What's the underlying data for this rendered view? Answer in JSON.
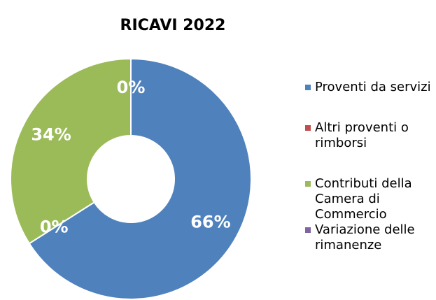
{
  "chart_data": {
    "type": "donut",
    "title": "RICAVI 2022",
    "categories": [
      "Proventi da servizi",
      "Altri proventi o rimborsi",
      "Contributi della Camera di Commercio",
      "Variazione delle rimanenze"
    ],
    "values": [
      66,
      0,
      34,
      0
    ],
    "value_labels": [
      "66%",
      "0%",
      "34%",
      "0%"
    ],
    "colors": [
      "#4f81bd",
      "#c0504d",
      "#9bbb59",
      "#8064a2"
    ],
    "legend": "right"
  }
}
